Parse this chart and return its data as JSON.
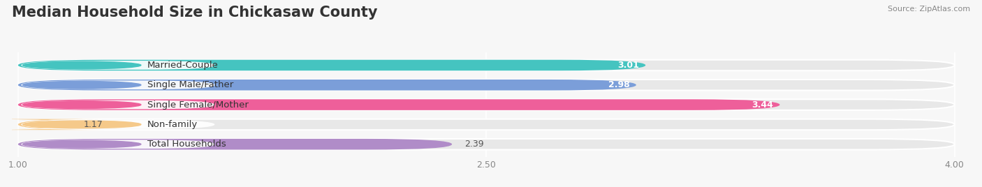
{
  "title": "Median Household Size in Chickasaw County",
  "source": "Source: ZipAtlas.com",
  "categories": [
    "Married-Couple",
    "Single Male/Father",
    "Single Female/Mother",
    "Non-family",
    "Total Households"
  ],
  "values": [
    3.01,
    2.98,
    3.44,
    1.17,
    2.39
  ],
  "bar_colors": [
    "#45C4C0",
    "#7B9ED9",
    "#EE5F9A",
    "#F5C98A",
    "#B08CC8"
  ],
  "dot_colors": [
    "#45C4C0",
    "#7B9ED9",
    "#EE5F9A",
    "#F5C98A",
    "#B08CC8"
  ],
  "value_inside": [
    true,
    true,
    true,
    false,
    false
  ],
  "xlim": [
    1.0,
    4.0
  ],
  "xticks": [
    1.0,
    2.5,
    4.0
  ],
  "xtick_labels": [
    "1.00",
    "2.50",
    "4.00"
  ],
  "bar_height": 0.55,
  "background_color": "#f7f7f7",
  "bar_bg_color": "#e8e8e8",
  "title_fontsize": 15,
  "label_fontsize": 9.5,
  "value_fontsize": 9
}
